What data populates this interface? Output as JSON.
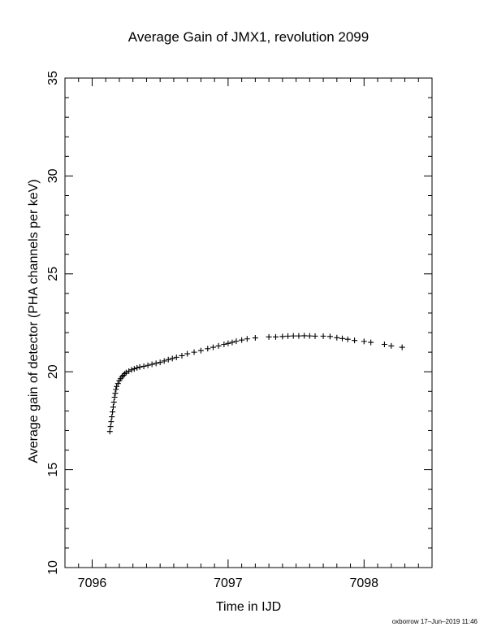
{
  "chart_data": {
    "type": "scatter",
    "title": "Average Gain of JMX1, revolution 2099",
    "xlabel": "Time in IJD",
    "ylabel": "Average gain of detector (PHA channels per keV)",
    "xlim": [
      7095.8,
      7098.5
    ],
    "ylim": [
      10,
      35
    ],
    "xticks": [
      7096,
      7097,
      7098
    ],
    "yticks": [
      10,
      15,
      20,
      25,
      30,
      35
    ],
    "marker": "plus",
    "grid": false,
    "points": [
      [
        7096.13,
        16.95
      ],
      [
        7096.135,
        17.2
      ],
      [
        7096.14,
        17.45
      ],
      [
        7096.145,
        17.7
      ],
      [
        7096.15,
        17.95
      ],
      [
        7096.155,
        18.2
      ],
      [
        7096.16,
        18.45
      ],
      [
        7096.165,
        18.7
      ],
      [
        7096.17,
        18.9
      ],
      [
        7096.175,
        19.1
      ],
      [
        7096.18,
        19.25
      ],
      [
        7096.19,
        19.4
      ],
      [
        7096.2,
        19.55
      ],
      [
        7096.21,
        19.65
      ],
      [
        7096.22,
        19.75
      ],
      [
        7096.23,
        19.82
      ],
      [
        7096.24,
        19.9
      ],
      [
        7096.25,
        19.96
      ],
      [
        7096.27,
        20.03
      ],
      [
        7096.29,
        20.1
      ],
      [
        7096.31,
        20.15
      ],
      [
        7096.33,
        20.2
      ],
      [
        7096.35,
        20.24
      ],
      [
        7096.38,
        20.28
      ],
      [
        7096.41,
        20.33
      ],
      [
        7096.44,
        20.38
      ],
      [
        7096.47,
        20.43
      ],
      [
        7096.5,
        20.48
      ],
      [
        7096.53,
        20.55
      ],
      [
        7096.56,
        20.62
      ],
      [
        7096.59,
        20.68
      ],
      [
        7096.62,
        20.74
      ],
      [
        7096.66,
        20.82
      ],
      [
        7096.7,
        20.92
      ],
      [
        7096.75,
        21.0
      ],
      [
        7096.8,
        21.08
      ],
      [
        7096.85,
        21.18
      ],
      [
        7096.89,
        21.25
      ],
      [
        7096.93,
        21.32
      ],
      [
        7096.97,
        21.4
      ],
      [
        7097.0,
        21.45
      ],
      [
        7097.03,
        21.5
      ],
      [
        7097.06,
        21.56
      ],
      [
        7097.1,
        21.62
      ],
      [
        7097.14,
        21.68
      ],
      [
        7097.2,
        21.73
      ],
      [
        7097.3,
        21.78
      ],
      [
        7097.35,
        21.78
      ],
      [
        7097.4,
        21.8
      ],
      [
        7097.44,
        21.82
      ],
      [
        7097.48,
        21.83
      ],
      [
        7097.52,
        21.83
      ],
      [
        7097.56,
        21.84
      ],
      [
        7097.6,
        21.83
      ],
      [
        7097.64,
        21.82
      ],
      [
        7097.7,
        21.82
      ],
      [
        7097.75,
        21.8
      ],
      [
        7097.8,
        21.74
      ],
      [
        7097.84,
        21.7
      ],
      [
        7097.88,
        21.66
      ],
      [
        7097.93,
        21.6
      ],
      [
        7098.0,
        21.55
      ],
      [
        7098.05,
        21.5
      ],
      [
        7098.15,
        21.4
      ],
      [
        7098.2,
        21.32
      ],
      [
        7098.28,
        21.25
      ]
    ]
  },
  "footer": "oxborrow 17–Jun–2019 11:46"
}
